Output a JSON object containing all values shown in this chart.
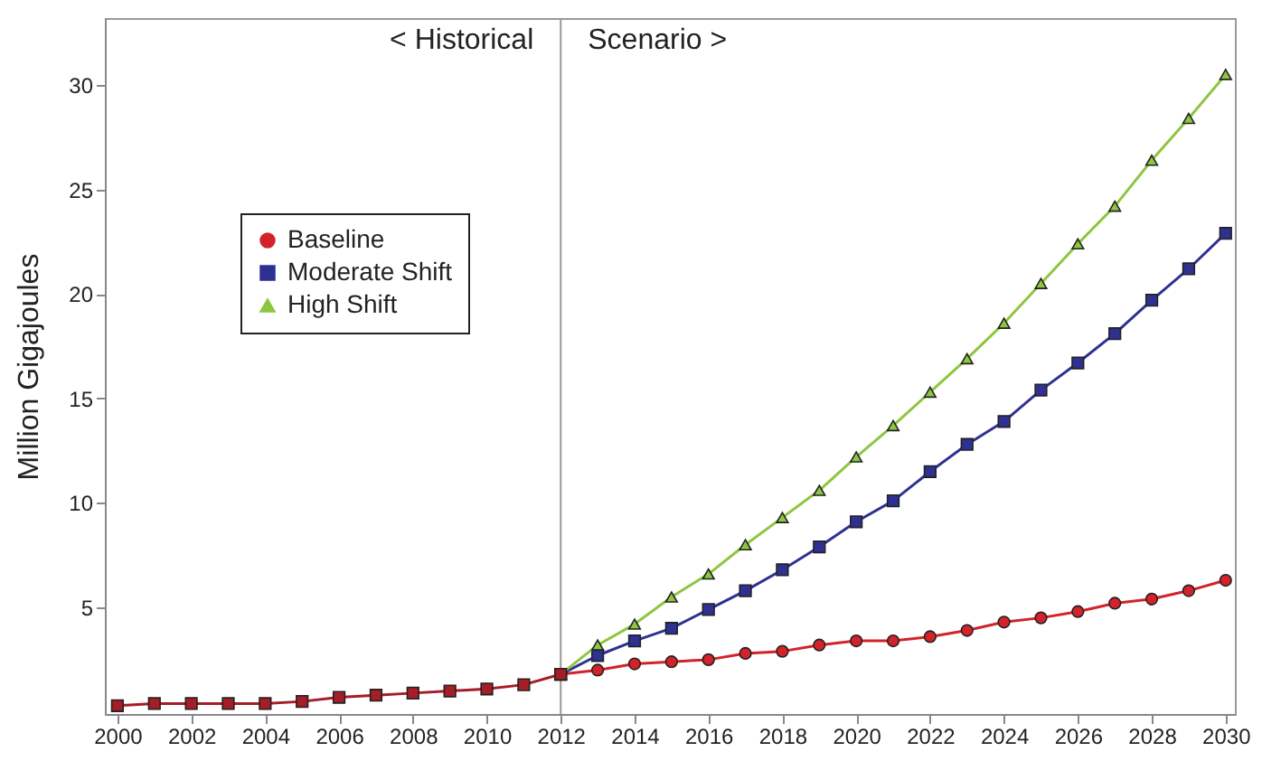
{
  "chart_data": {
    "type": "line",
    "ylabel": "Million Gigajoules",
    "series": [
      {
        "name": "Baseline",
        "color": "#d2232a",
        "marker": "circle",
        "x": [
          2012,
          2013,
          2014,
          2015,
          2016,
          2017,
          2018,
          2019,
          2020,
          2021,
          2022,
          2023,
          2024,
          2025,
          2026,
          2027,
          2028,
          2029,
          2030
        ],
        "values": [
          1.8,
          2.0,
          2.3,
          2.4,
          2.5,
          2.8,
          2.9,
          3.2,
          3.4,
          3.4,
          3.6,
          3.9,
          4.3,
          4.5,
          4.8,
          5.2,
          5.4,
          5.8,
          6.3
        ]
      },
      {
        "name": "Moderate Shift",
        "color": "#2e3192",
        "marker": "square",
        "x": [
          2012,
          2013,
          2014,
          2015,
          2016,
          2017,
          2018,
          2019,
          2020,
          2021,
          2022,
          2023,
          2024,
          2025,
          2026,
          2027,
          2028,
          2029,
          2030
        ],
        "values": [
          1.8,
          2.7,
          3.4,
          4.0,
          4.9,
          5.8,
          6.8,
          7.9,
          9.1,
          10.1,
          11.5,
          12.8,
          13.9,
          15.4,
          16.7,
          18.1,
          19.7,
          21.2,
          22.9
        ]
      },
      {
        "name": "High Shift",
        "color": "#8dc63f",
        "marker": "triangle",
        "x": [
          2012,
          2013,
          2014,
          2015,
          2016,
          2017,
          2018,
          2019,
          2020,
          2021,
          2022,
          2023,
          2024,
          2025,
          2026,
          2027,
          2028,
          2029,
          2030
        ],
        "values": [
          1.8,
          3.2,
          4.2,
          5.5,
          6.6,
          8.0,
          9.3,
          10.6,
          12.2,
          13.7,
          15.3,
          16.9,
          18.6,
          20.5,
          22.4,
          24.2,
          26.4,
          28.4,
          30.5
        ]
      },
      {
        "color": "#a51d26",
        "marker": "square",
        "x": [
          2000,
          2001,
          2002,
          2003,
          2004,
          2005,
          2006,
          2007,
          2008,
          2009,
          2010,
          2011,
          2012
        ],
        "values": [
          0.3,
          0.4,
          0.4,
          0.4,
          0.4,
          0.5,
          0.7,
          0.8,
          0.9,
          1.0,
          1.1,
          1.3,
          1.8
        ]
      }
    ],
    "xlim": [
      1999.66,
      2030.25
    ],
    "ylim": [
      -0.1,
      33.2
    ],
    "xticks": [
      2000,
      2002,
      2004,
      2006,
      2008,
      2010,
      2012,
      2014,
      2016,
      2018,
      2020,
      2022,
      2024,
      2026,
      2028,
      2030
    ],
    "yticks": [
      5,
      10,
      15,
      20,
      25,
      30
    ],
    "ref_lines": [
      {
        "axis": "x",
        "value": 2012,
        "color": "#999999"
      }
    ],
    "annotations": [
      "< Historical",
      "Scenario >"
    ],
    "grid": false,
    "legend": "top left"
  }
}
